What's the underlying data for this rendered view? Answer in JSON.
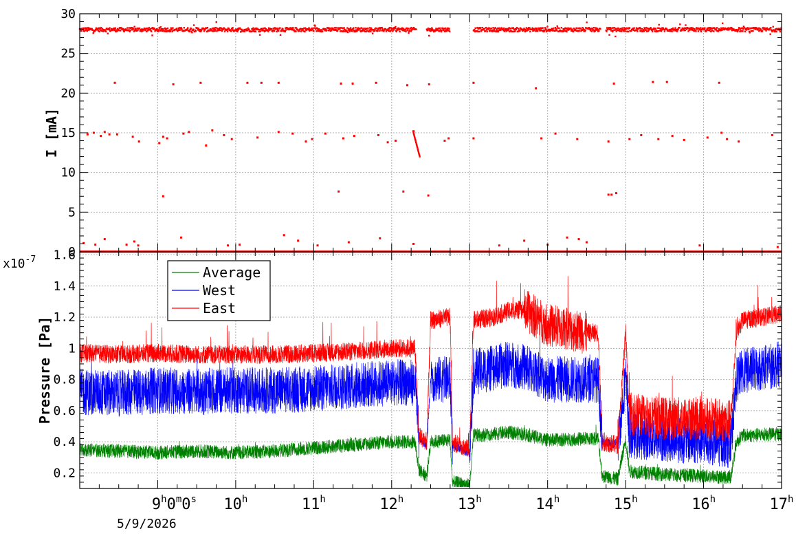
{
  "chart_data": [
    {
      "type": "scatter",
      "ylabel": "I [mA]",
      "ylim": [
        0,
        30
      ],
      "yticks": [
        "0",
        "5",
        "10",
        "15",
        "20",
        "25",
        "30"
      ],
      "xlim": [
        8.0,
        17.0
      ],
      "grid": true,
      "color": "#ff0000",
      "series": [
        {
          "values": {
            "main_band_mA": 28.0,
            "zero_band_mA": 0.0,
            "main_band_segments_h": [
              [
                8.0,
                12.32
              ],
              [
                12.45,
                12.75
              ],
              [
                13.05,
                14.68
              ],
              [
                14.75,
                17.0
              ]
            ],
            "slow_drop_segment": {
              "x": [
                12.28,
                12.36
              ],
              "y": [
                15.0,
                12.0
              ]
            },
            "scatter_points": [
              [
                8.1,
                14.8
              ],
              [
                8.18,
                15.0
              ],
              [
                8.27,
                14.6
              ],
              [
                8.32,
                15.1
              ],
              [
                8.38,
                14.8
              ],
              [
                8.45,
                21.3
              ],
              [
                8.48,
                14.8
              ],
              [
                8.68,
                14.5
              ],
              [
                8.76,
                13.9
              ],
              [
                9.02,
                13.7
              ],
              [
                9.07,
                14.5
              ],
              [
                9.12,
                14.3
              ],
              [
                9.2,
                21.1
              ],
              [
                9.33,
                14.9
              ],
              [
                9.4,
                15.1
              ],
              [
                9.55,
                21.3
              ],
              [
                9.62,
                13.4
              ],
              [
                9.7,
                15.3
              ],
              [
                9.85,
                14.7
              ],
              [
                9.95,
                14.2
              ],
              [
                10.15,
                21.3
              ],
              [
                10.28,
                14.4
              ],
              [
                10.33,
                21.3
              ],
              [
                10.55,
                21.3
              ],
              [
                10.55,
                15.1
              ],
              [
                10.73,
                14.9
              ],
              [
                10.9,
                13.9
              ],
              [
                10.98,
                14.2
              ],
              [
                11.15,
                14.9
              ],
              [
                11.35,
                21.2
              ],
              [
                11.38,
                14.3
              ],
              [
                11.5,
                21.2
              ],
              [
                11.52,
                14.6
              ],
              [
                11.8,
                21.3
              ],
              [
                11.83,
                14.7
              ],
              [
                11.95,
                13.8
              ],
              [
                12.05,
                14.0
              ],
              [
                12.2,
                21.0
              ],
              [
                12.28,
                15.2
              ],
              [
                12.48,
                21.1
              ],
              [
                12.68,
                14.0
              ],
              [
                12.73,
                14.3
              ],
              [
                13.05,
                21.3
              ],
              [
                13.05,
                14.3
              ],
              [
                13.85,
                20.6
              ],
              [
                13.92,
                14.3
              ],
              [
                14.1,
                14.9
              ],
              [
                14.38,
                14.2
              ],
              [
                14.78,
                13.9
              ],
              [
                14.85,
                21.2
              ],
              [
                15.05,
                14.2
              ],
              [
                15.2,
                14.7
              ],
              [
                15.35,
                21.4
              ],
              [
                15.42,
                14.2
              ],
              [
                15.53,
                21.4
              ],
              [
                15.6,
                14.6
              ],
              [
                15.75,
                14.1
              ],
              [
                16.05,
                14.4
              ],
              [
                16.2,
                21.3
              ],
              [
                16.23,
                15.0
              ],
              [
                16.3,
                14.2
              ],
              [
                16.45,
                13.9
              ],
              [
                16.88,
                14.7
              ],
              [
                9.07,
                7.0
              ],
              [
                11.32,
                7.6
              ],
              [
                12.15,
                7.6
              ],
              [
                12.47,
                7.1
              ],
              [
                14.78,
                7.2
              ],
              [
                14.82,
                7.2
              ],
              [
                14.88,
                7.4
              ],
              [
                8.05,
                1.1
              ],
              [
                8.2,
                0.9
              ],
              [
                8.32,
                1.6
              ],
              [
                8.6,
                0.9
              ],
              [
                8.7,
                1.3
              ],
              [
                8.75,
                0.8
              ],
              [
                9.3,
                1.8
              ],
              [
                9.9,
                0.8
              ],
              [
                10.05,
                0.9
              ],
              [
                10.62,
                2.1
              ],
              [
                10.8,
                1.4
              ],
              [
                11.05,
                0.8
              ],
              [
                11.45,
                1.2
              ],
              [
                11.85,
                1.7
              ],
              [
                12.28,
                1.0
              ],
              [
                13.38,
                0.8
              ],
              [
                13.7,
                1.4
              ],
              [
                14.0,
                0.9
              ],
              [
                14.25,
                1.8
              ],
              [
                14.4,
                1.6
              ],
              [
                14.5,
                1.2
              ],
              [
                15.95,
                0.8
              ],
              [
                16.95,
                0.6
              ]
            ]
          }
        }
      ]
    },
    {
      "type": "line",
      "ylabel": "Pressure [Pa]",
      "yscale_label": "x10",
      "yscale_exponent": "-7",
      "ylim": [
        0.1,
        1.62
      ],
      "yticks": [
        "0.2",
        "0.4",
        "0.6",
        "0.8",
        "1",
        "1.2",
        "1.4",
        "1.6"
      ],
      "xlim": [
        8.0,
        17.0
      ],
      "xticks": [
        "9",
        "10",
        "11",
        "12",
        "13",
        "14",
        "15",
        "16",
        "17"
      ],
      "xtick_unit": "h",
      "first_xtick_suffix": "0m0s",
      "date_label": "5/9/2026",
      "grid": true,
      "legend": "top-left",
      "series": [
        {
          "name": "Average",
          "color": "#008000",
          "x": [
            8.0,
            8.5,
            9.0,
            9.5,
            10.0,
            10.5,
            11.0,
            11.5,
            12.0,
            12.3,
            12.35,
            12.45,
            12.5,
            12.75,
            12.78,
            13.0,
            13.05,
            13.3,
            13.5,
            13.7,
            14.0,
            14.5,
            14.65,
            14.7,
            14.9,
            15.0,
            15.05,
            15.5,
            16.0,
            16.35,
            16.42,
            16.5,
            17.0
          ],
          "values": [
            0.35,
            0.34,
            0.33,
            0.34,
            0.33,
            0.34,
            0.36,
            0.38,
            0.4,
            0.4,
            0.22,
            0.18,
            0.4,
            0.41,
            0.14,
            0.12,
            0.44,
            0.45,
            0.46,
            0.45,
            0.41,
            0.42,
            0.42,
            0.18,
            0.16,
            0.42,
            0.21,
            0.19,
            0.18,
            0.17,
            0.4,
            0.44,
            0.45
          ]
        },
        {
          "name": "West",
          "color": "#0000ff",
          "x": [
            8.0,
            8.5,
            9.0,
            9.5,
            10.0,
            10.5,
            11.0,
            11.5,
            12.0,
            12.3,
            12.35,
            12.45,
            12.5,
            12.75,
            12.78,
            13.0,
            13.05,
            13.3,
            13.5,
            13.7,
            14.0,
            14.5,
            14.65,
            14.7,
            14.9,
            15.0,
            15.05,
            15.5,
            16.0,
            16.35,
            16.42,
            16.5,
            17.0
          ],
          "values": [
            0.72,
            0.71,
            0.73,
            0.72,
            0.73,
            0.73,
            0.74,
            0.76,
            0.78,
            0.78,
            0.42,
            0.38,
            0.8,
            0.8,
            0.38,
            0.33,
            0.85,
            0.87,
            0.9,
            0.88,
            0.8,
            0.8,
            0.8,
            0.4,
            0.38,
            0.82,
            0.44,
            0.42,
            0.4,
            0.38,
            0.8,
            0.85,
            0.9
          ]
        },
        {
          "name": "East",
          "color": "#ff0000",
          "x": [
            8.0,
            8.5,
            9.0,
            9.5,
            10.0,
            10.5,
            11.0,
            11.5,
            12.0,
            12.3,
            12.35,
            12.45,
            12.5,
            12.75,
            12.78,
            13.0,
            13.05,
            13.3,
            13.5,
            13.7,
            14.0,
            14.5,
            14.65,
            14.7,
            14.9,
            15.0,
            15.05,
            15.5,
            16.0,
            16.35,
            16.42,
            16.5,
            17.0
          ],
          "values": [
            0.97,
            0.96,
            0.97,
            0.96,
            0.96,
            0.96,
            0.97,
            0.98,
            1.0,
            1.0,
            0.44,
            0.4,
            1.18,
            1.2,
            0.4,
            0.35,
            1.18,
            1.2,
            1.24,
            1.25,
            1.15,
            1.1,
            1.1,
            0.4,
            0.38,
            1.1,
            0.58,
            0.55,
            0.55,
            0.53,
            1.1,
            1.18,
            1.22
          ]
        }
      ]
    }
  ]
}
